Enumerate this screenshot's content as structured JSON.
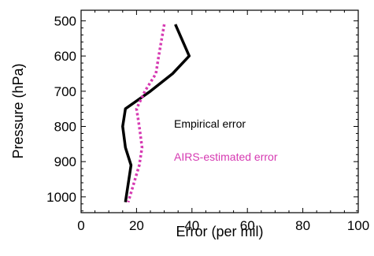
{
  "chart_data": {
    "type": "line",
    "title": "",
    "xlabel": "Error (per mil)",
    "ylabel": "Pressure (hPa)",
    "xlim": [
      0,
      100
    ],
    "ylim": [
      1045,
      470
    ],
    "y_reversed": true,
    "grid": false,
    "x_ticks": [
      0,
      20,
      40,
      60,
      80,
      100
    ],
    "y_ticks": [
      500,
      600,
      700,
      800,
      900,
      1000
    ],
    "legend_position": "right-middle",
    "series": [
      {
        "name": "Empirical error",
        "color": "#000000",
        "style": "solid",
        "x": [
          34,
          39,
          33,
          25,
          16,
          15,
          16,
          18,
          16
        ],
        "y": [
          510,
          600,
          650,
          700,
          750,
          800,
          860,
          910,
          1015
        ]
      },
      {
        "name": "AIRS-estimated error",
        "color": "#d63ab2",
        "style": "dotted",
        "x": [
          30,
          28,
          27,
          23,
          20,
          21,
          22,
          21,
          17
        ],
        "y": [
          510,
          600,
          650,
          700,
          750,
          800,
          860,
          910,
          1015
        ]
      }
    ]
  }
}
